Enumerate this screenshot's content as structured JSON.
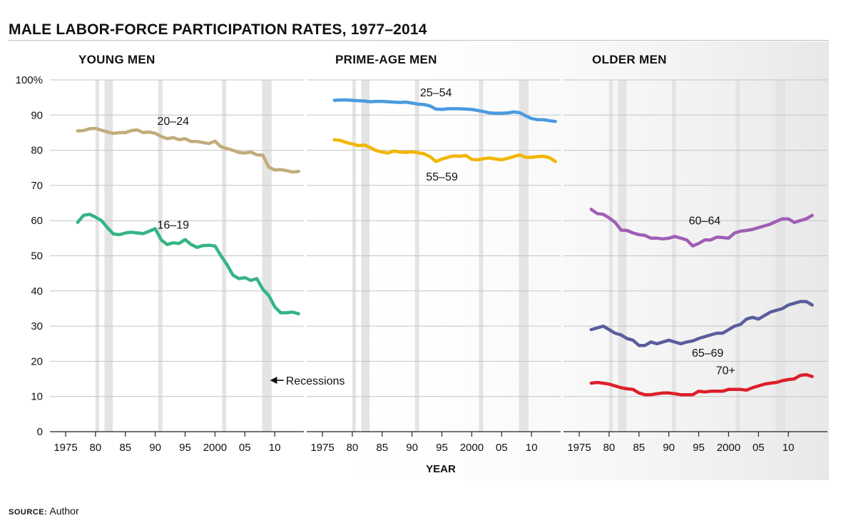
{
  "title": "MALE LABOR-FORCE PARTICIPATION RATES, 1977–2014",
  "source": {
    "label": "SOURCE:",
    "text": "Author"
  },
  "chart_data": {
    "type": "line",
    "xlabel": "YEAR",
    "xlim": [
      1975,
      2015
    ],
    "ylim": [
      0,
      100
    ],
    "y_ticks": [
      0,
      10,
      20,
      30,
      40,
      50,
      60,
      70,
      80,
      90,
      100
    ],
    "y_tick_labels": [
      "0",
      "10",
      "20",
      "30",
      "40",
      "50",
      "60",
      "70",
      "80",
      "90",
      "100%"
    ],
    "x_ticks": [
      1975,
      1980,
      1985,
      1990,
      1995,
      2000,
      2005,
      2010
    ],
    "x_tick_labels": [
      "1975",
      "80",
      "85",
      "90",
      "95",
      "2000",
      "05",
      "10"
    ],
    "grid": "horizontal",
    "recessions": [
      [
        1980.0,
        1980.5
      ],
      [
        1981.5,
        1982.9
      ],
      [
        1990.5,
        1991.2
      ],
      [
        2001.2,
        2001.9
      ],
      [
        2007.9,
        2009.5
      ]
    ],
    "recession_annotation": "Recessions",
    "colors": {
      "20-24": "#c2ac7a",
      "16-19": "#35b584",
      "25-54": "#4a9be0",
      "55-59": "#f2b600",
      "60-64": "#a05eb5",
      "65-69": "#5a5d9c",
      "70+": "#dc1f2b",
      "recession_band": "#e4e4e4",
      "grid": "#c4c4c4"
    },
    "panels": [
      {
        "title": "YOUNG MEN",
        "series": [
          {
            "name": "20–24",
            "x": [
              1977,
              1978,
              1979,
              1980,
              1981,
              1982,
              1983,
              1984,
              1985,
              1986,
              1987,
              1988,
              1989,
              1990,
              1991,
              1992,
              1993,
              1994,
              1995,
              1996,
              1997,
              1998,
              1999,
              2000,
              2001,
              2002,
              2003,
              2004,
              2005,
              2006,
              2007,
              2008,
              2009,
              2010,
              2011,
              2012,
              2013,
              2014
            ],
            "y": [
              85.5,
              85.6,
              86.1,
              86.2,
              85.7,
              85.2,
              84.8,
              85.0,
              85.0,
              85.6,
              85.8,
              85.0,
              85.2,
              84.8,
              83.9,
              83.3,
              83.6,
              83.0,
              83.3,
              82.5,
              82.5,
              82.2,
              81.9,
              82.6,
              81.0,
              80.5,
              80.0,
              79.4,
              79.2,
              79.5,
              78.7,
              78.6,
              75.2,
              74.4,
              74.5,
              74.2,
              73.8,
              74.0
            ]
          },
          {
            "name": "16–19",
            "x": [
              1977,
              1978,
              1979,
              1980,
              1981,
              1982,
              1983,
              1984,
              1985,
              1986,
              1987,
              1988,
              1989,
              1990,
              1991,
              1992,
              1993,
              1994,
              1995,
              1996,
              1997,
              1998,
              1999,
              2000,
              2001,
              2002,
              2003,
              2004,
              2005,
              2006,
              2007,
              2008,
              2009,
              2010,
              2011,
              2012,
              2013,
              2014
            ],
            "y": [
              59.5,
              61.5,
              61.8,
              61.0,
              60.0,
              58.0,
              56.2,
              56.0,
              56.5,
              56.7,
              56.5,
              56.3,
              57.0,
              57.7,
              54.5,
              53.2,
              53.7,
              53.5,
              54.6,
              53.2,
              52.4,
              52.9,
              53.0,
              52.8,
              50.0,
              47.5,
              44.5,
              43.5,
              43.8,
              43.0,
              43.5,
              40.5,
              38.7,
              35.5,
              33.8,
              33.8,
              34.0,
              33.5
            ]
          }
        ],
        "annotation": "Recessions"
      },
      {
        "title": "PRIME-AGE MEN",
        "series": [
          {
            "name": "25–54",
            "x": [
              1977,
              1978,
              1979,
              1980,
              1981,
              1982,
              1983,
              1984,
              1985,
              1986,
              1987,
              1988,
              1989,
              1990,
              1991,
              1992,
              1993,
              1994,
              1995,
              1996,
              1997,
              1998,
              1999,
              2000,
              2001,
              2002,
              2003,
              2004,
              2005,
              2006,
              2007,
              2008,
              2009,
              2010,
              2011,
              2012,
              2013,
              2014
            ],
            "y": [
              94.2,
              94.3,
              94.3,
              94.2,
              94.1,
              94.0,
              93.8,
              93.9,
              93.9,
              93.8,
              93.7,
              93.6,
              93.7,
              93.4,
              93.1,
              93.0,
              92.6,
              91.7,
              91.6,
              91.8,
              91.8,
              91.8,
              91.7,
              91.6,
              91.3,
              91.0,
              90.6,
              90.5,
              90.5,
              90.6,
              90.9,
              90.7,
              89.8,
              89.0,
              88.7,
              88.7,
              88.4,
              88.2
            ]
          },
          {
            "name": "55–59",
            "x": [
              1977,
              1978,
              1979,
              1980,
              1981,
              1982,
              1983,
              1984,
              1985,
              1986,
              1987,
              1988,
              1989,
              1990,
              1991,
              1992,
              1993,
              1994,
              1995,
              1996,
              1997,
              1998,
              1999,
              2000,
              2001,
              2002,
              2003,
              2004,
              2005,
              2006,
              2007,
              2008,
              2009,
              2010,
              2011,
              2012,
              2013,
              2014
            ],
            "y": [
              83.0,
              82.8,
              82.2,
              81.8,
              81.3,
              81.5,
              80.8,
              79.9,
              79.5,
              79.2,
              79.8,
              79.5,
              79.4,
              79.6,
              79.3,
              79.0,
              78.2,
              76.8,
              77.5,
              78.0,
              78.4,
              78.3,
              78.5,
              77.4,
              77.3,
              77.6,
              77.8,
              77.5,
              77.3,
              77.7,
              78.2,
              78.7,
              78.0,
              78.0,
              78.2,
              78.3,
              77.9,
              76.8
            ]
          }
        ]
      },
      {
        "title": "OLDER MEN",
        "series": [
          {
            "name": "60–64",
            "x": [
              1977,
              1978,
              1979,
              1980,
              1981,
              1982,
              1983,
              1984,
              1985,
              1986,
              1987,
              1988,
              1989,
              1990,
              1991,
              1992,
              1993,
              1994,
              1995,
              1996,
              1997,
              1998,
              1999,
              2000,
              2001,
              2002,
              2003,
              2004,
              2005,
              2006,
              2007,
              2008,
              2009,
              2010,
              2011,
              2012,
              2013,
              2014
            ],
            "y": [
              63.2,
              62.0,
              61.8,
              60.8,
              59.5,
              57.3,
              57.2,
              56.5,
              56.0,
              55.8,
              55.0,
              55.0,
              54.8,
              55.0,
              55.5,
              55.0,
              54.5,
              52.8,
              53.5,
              54.5,
              54.5,
              55.3,
              55.2,
              55.0,
              56.5,
              57.0,
              57.2,
              57.5,
              58.0,
              58.5,
              59.0,
              59.8,
              60.5,
              60.5,
              59.5,
              60.0,
              60.5,
              61.5
            ]
          },
          {
            "name": "65–69",
            "x": [
              1977,
              1978,
              1979,
              1980,
              1981,
              1982,
              1983,
              1984,
              1985,
              1986,
              1987,
              1988,
              1989,
              1990,
              1991,
              1992,
              1993,
              1994,
              1995,
              1996,
              1997,
              1998,
              1999,
              2000,
              2001,
              2002,
              2003,
              2004,
              2005,
              2006,
              2007,
              2008,
              2009,
              2010,
              2011,
              2012,
              2013,
              2014
            ],
            "y": [
              29.0,
              29.5,
              30.0,
              29.0,
              28.0,
              27.5,
              26.5,
              26.0,
              24.5,
              24.5,
              25.5,
              25.0,
              25.5,
              26.0,
              25.5,
              25.0,
              25.5,
              25.8,
              26.5,
              27.0,
              27.5,
              28.0,
              28.0,
              29.0,
              30.0,
              30.5,
              32.0,
              32.5,
              32.0,
              33.0,
              34.0,
              34.5,
              35.0,
              36.0,
              36.5,
              37.0,
              37.0,
              36.0
            ]
          },
          {
            "name": "70+",
            "x": [
              1977,
              1978,
              1979,
              1980,
              1981,
              1982,
              1983,
              1984,
              1985,
              1986,
              1987,
              1988,
              1989,
              1990,
              1991,
              1992,
              1993,
              1994,
              1995,
              1996,
              1997,
              1998,
              1999,
              2000,
              2001,
              2002,
              2003,
              2004,
              2005,
              2006,
              2007,
              2008,
              2009,
              2010,
              2011,
              2012,
              2013,
              2014
            ],
            "y": [
              13.8,
              14.0,
              13.8,
              13.5,
              13.0,
              12.5,
              12.2,
              12.0,
              11.0,
              10.5,
              10.5,
              10.8,
              11.0,
              11.0,
              10.8,
              10.5,
              10.5,
              10.5,
              11.5,
              11.3,
              11.5,
              11.5,
              11.5,
              12.0,
              12.0,
              12.0,
              11.8,
              12.5,
              13.0,
              13.5,
              13.8,
              14.0,
              14.5,
              14.8,
              15.0,
              16.0,
              16.2,
              15.7
            ]
          }
        ]
      }
    ]
  }
}
